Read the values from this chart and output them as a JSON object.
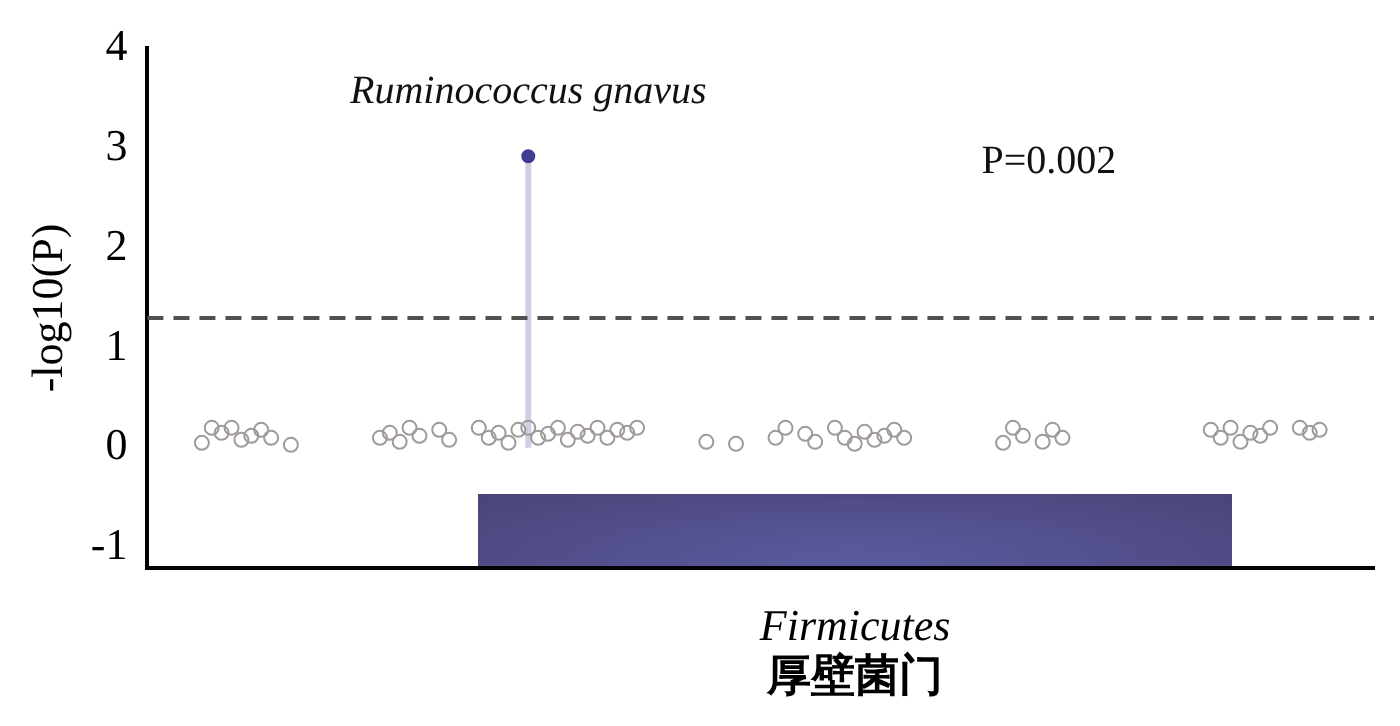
{
  "chart_data": {
    "type": "scatter",
    "ylabel": "-log10(P)",
    "xlabel": "Firmicutes\n厚壁菌门",
    "categories": [
      null,
      null,
      null,
      null,
      null,
      null,
      null,
      null,
      null,
      null,
      null,
      null,
      null,
      null,
      null,
      null,
      null,
      null,
      null,
      null,
      null,
      null,
      null,
      null,
      null,
      null,
      null,
      null,
      null,
      null,
      null,
      null,
      null,
      null,
      null,
      null,
      null,
      null,
      null,
      null,
      null,
      null,
      null,
      null,
      null,
      null,
      null,
      null,
      null,
      null,
      null,
      null,
      null,
      null,
      null,
      null,
      null,
      null,
      null,
      null,
      null,
      null,
      null,
      null,
      null,
      null,
      null,
      null,
      null,
      null,
      null,
      null,
      null,
      null,
      null,
      null,
      null,
      null,
      null,
      null,
      null,
      null,
      null,
      null,
      null,
      null,
      null,
      null,
      null,
      null,
      null,
      null,
      null,
      null,
      null,
      null,
      null,
      null,
      null,
      null,
      null,
      null,
      null,
      null,
      null,
      null,
      null,
      null,
      null,
      null,
      null,
      null,
      null,
      null,
      null,
      null,
      null,
      null,
      null,
      null,
      null,
      null,
      null,
      null
    ],
    "series": [
      {
        "color": "#a09a9a",
        "values": [
          null,
          null,
          null,
          null,
          null,
          0.05,
          0.2,
          0.15,
          0.2,
          0.08,
          0.12,
          0.18,
          0.1,
          null,
          0.03,
          null,
          null,
          null,
          null,
          null,
          null,
          null,
          null,
          0.1,
          0.15,
          0.06,
          0.2,
          0.12,
          null,
          0.18,
          0.08,
          null,
          null,
          0.2,
          0.1,
          0.15,
          0.05,
          0.18,
          0.2,
          0.1,
          0.14,
          0.2,
          0.08,
          0.16,
          0.12,
          0.2,
          0.1,
          0.18,
          0.15,
          0.2,
          null,
          null,
          null,
          null,
          null,
          null,
          0.06,
          null,
          null,
          0.04,
          null,
          null,
          null,
          0.1,
          0.2,
          null,
          0.14,
          0.06,
          null,
          0.2,
          0.1,
          0.04,
          0.16,
          0.08,
          0.12,
          0.18,
          0.1,
          null,
          null,
          null,
          null,
          null,
          null,
          null,
          null,
          null,
          0.05,
          0.2,
          0.12,
          null,
          0.06,
          0.18,
          0.1,
          null,
          null,
          null,
          null,
          null,
          null,
          null,
          null,
          null,
          null,
          null,
          null,
          null,
          null,
          0.18,
          0.1,
          0.2,
          0.06,
          0.15,
          0.12,
          0.2,
          null,
          null,
          0.2,
          0.15,
          0.18,
          null,
          null,
          null,
          null,
          null
        ]
      },
      {
        "type": "lollipop",
        "color": "#3f3d8f",
        "values": [
          null,
          null,
          null,
          null,
          null,
          null,
          null,
          null,
          null,
          null,
          null,
          null,
          null,
          null,
          null,
          null,
          null,
          null,
          null,
          null,
          null,
          null,
          null,
          null,
          null,
          null,
          null,
          null,
          null,
          null,
          null,
          null,
          null,
          null,
          null,
          null,
          null,
          null,
          2.92,
          null,
          null,
          null,
          null,
          null,
          null,
          null,
          null,
          null,
          null,
          null,
          null,
          null,
          null,
          null,
          null,
          null,
          null,
          null,
          null,
          null,
          null,
          null,
          null,
          null,
          null,
          null,
          null,
          null,
          null,
          null,
          null,
          null,
          null,
          null,
          null,
          null,
          null,
          null,
          null,
          null,
          null,
          null,
          null,
          null,
          null,
          null,
          null,
          null,
          null,
          null,
          null,
          null,
          null,
          null,
          null,
          null,
          null,
          null,
          null,
          null,
          null,
          null,
          null,
          null,
          null,
          null,
          null,
          null,
          null,
          null,
          null,
          null,
          null,
          null,
          null,
          null,
          null,
          null,
          null,
          null,
          null,
          null,
          null,
          null
        ]
      }
    ],
    "ylim": [
      -1.2,
      4
    ],
    "yticks": [
      -1,
      0,
      1,
      2,
      3,
      4
    ],
    "ref_lines": [
      {
        "axis": "y",
        "value": 1.3,
        "color": "#555050",
        "line_style": "dashed"
      }
    ],
    "annotations": [
      "Ruminococcus gnavus",
      "P=0.002"
    ],
    "tick_labels": "y",
    "grid": false,
    "legend": false
  }
}
